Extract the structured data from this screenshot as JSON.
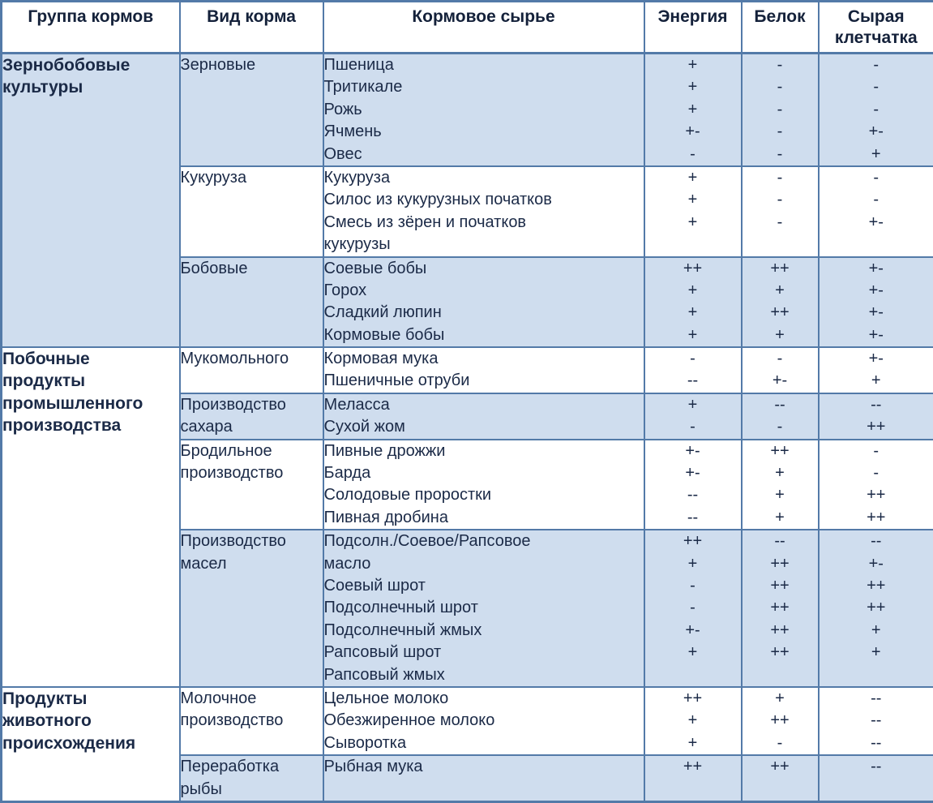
{
  "table": {
    "columns": [
      "Группа кормов",
      "Вид корма",
      "Кормовое сырье",
      "Энергия",
      "Белок",
      "Сырая клетчатка"
    ],
    "colors": {
      "band_blue": "#cfddee",
      "band_white": "#ffffff",
      "border": "#537aa8",
      "text": "#1b2a47"
    },
    "groups": [
      {
        "label": "Зернобобовые культуры",
        "label_lines": [
          "Зернобобовые",
          "культуры"
        ],
        "label_band": "blue",
        "sections": [
          {
            "type": "Зерновые",
            "type_lines": [
              "Зерновые"
            ],
            "band": "blue",
            "feeds": [
              "Пшеница",
              "Тритикале",
              "Рожь",
              "Ячмень",
              "Овес"
            ],
            "energy": [
              "+",
              "+",
              "+",
              "+-",
              "-"
            ],
            "protein": [
              "-",
              "-",
              "-",
              "-",
              "-"
            ],
            "fiber": [
              "-",
              "-",
              "-",
              "+-",
              "+"
            ]
          },
          {
            "type": "Кукуруза",
            "type_lines": [
              "Кукуруза"
            ],
            "band": "white",
            "feeds": [
              "Кукуруза",
              "Силос из кукурузных початков",
              "Смесь из зёрен и початков",
              "кукурузы"
            ],
            "energy": [
              "+",
              "+",
              "+",
              ""
            ],
            "protein": [
              "-",
              "-",
              "-",
              ""
            ],
            "fiber": [
              "-",
              "-",
              "+-",
              ""
            ]
          },
          {
            "type": "Бобовые",
            "type_lines": [
              "Бобовые"
            ],
            "band": "blue",
            "feeds": [
              "Соевые бобы",
              "Горох",
              "Сладкий люпин",
              "Кормовые бобы"
            ],
            "energy": [
              "++",
              "+",
              "+",
              "+"
            ],
            "protein": [
              "++",
              "+",
              "++",
              "+"
            ],
            "fiber": [
              "+-",
              "+-",
              "+-",
              "+-"
            ]
          }
        ]
      },
      {
        "label": "Побочные продукты промышленного производства",
        "label_lines": [
          "Побочные",
          "продукты",
          "промышленного",
          "производства"
        ],
        "label_band": "white",
        "sections": [
          {
            "type": "Мукомольного",
            "type_lines": [
              "Мукомольного"
            ],
            "band": "white",
            "feeds": [
              "Кормовая мука",
              "Пшеничные отруби"
            ],
            "energy": [
              "-",
              "--"
            ],
            "protein": [
              "-",
              "+-"
            ],
            "fiber": [
              "+-",
              "+"
            ]
          },
          {
            "type": "Производство сахара",
            "type_lines": [
              "Производство",
              "сахара"
            ],
            "band": "blue",
            "feeds": [
              "Меласса",
              "Сухой жом"
            ],
            "energy": [
              "+",
              "-"
            ],
            "protein": [
              "--",
              "-"
            ],
            "fiber": [
              "--",
              "++"
            ]
          },
          {
            "type": "Бродильное производство",
            "type_lines": [
              "Бродильное",
              "производство"
            ],
            "band": "white",
            "feeds": [
              "Пивные дрожжи",
              "Барда",
              "Солодовые проростки",
              "Пивная дробина"
            ],
            "energy": [
              "+-",
              "+-",
              "--",
              "--"
            ],
            "protein": [
              "++",
              "+",
              "+",
              "+"
            ],
            "fiber": [
              "-",
              "-",
              "++",
              "++"
            ]
          },
          {
            "type": "Производство масел",
            "type_lines": [
              "Производство",
              "масел"
            ],
            "band": "blue",
            "feeds": [
              "Подсолн./Соевое/Рапсовое",
              "масло",
              "Соевый шрот",
              "Подсолнечный шрот",
              "Подсолнечный жмых",
              "Рапсовый шрот",
              "Рапсовый жмых"
            ],
            "energy": [
              "++",
              "+",
              "-",
              "-",
              "+-",
              "+",
              ""
            ],
            "protein": [
              "--",
              "++",
              "++",
              "++",
              "++",
              "++",
              ""
            ],
            "fiber": [
              "--",
              "+-",
              "++",
              "++",
              "+",
              "+",
              ""
            ]
          }
        ]
      },
      {
        "label": "Продукты животного происхождения",
        "label_lines": [
          "Продукты",
          "животного",
          "происхождения"
        ],
        "label_band": "white",
        "sections": [
          {
            "type": "Молочное производство",
            "type_lines": [
              "Молочное",
              "производство"
            ],
            "band": "white",
            "feeds": [
              "Цельное молоко",
              "Обезжиренное молоко",
              "Сыворотка"
            ],
            "energy": [
              "++",
              "+",
              "+"
            ],
            "protein": [
              "+",
              "++",
              "-"
            ],
            "fiber": [
              "--",
              "--",
              "--"
            ]
          },
          {
            "type": "Переработка рыбы",
            "type_lines": [
              "Переработка",
              "рыбы"
            ],
            "band": "blue",
            "feeds": [
              "Рыбная мука"
            ],
            "energy": [
              "++"
            ],
            "protein": [
              "++"
            ],
            "fiber": [
              "--"
            ]
          }
        ]
      }
    ]
  }
}
